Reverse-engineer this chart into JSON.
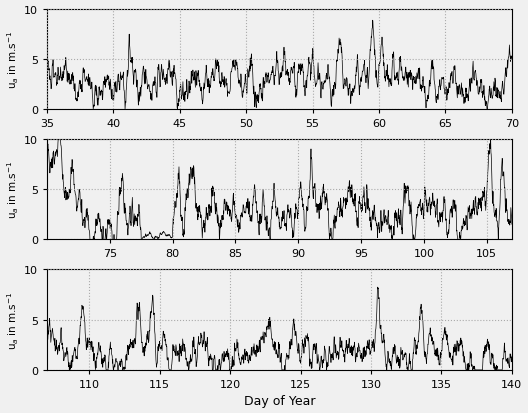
{
  "panels": [
    {
      "xmin": 35,
      "xmax": 70,
      "xticks": [
        35,
        40,
        45,
        50,
        55,
        60,
        65,
        70
      ]
    },
    {
      "xmin": 70,
      "xmax": 107,
      "xticks": [
        75,
        80,
        85,
        90,
        95,
        100,
        105
      ]
    },
    {
      "xmin": 107,
      "xmax": 140,
      "xticks": [
        110,
        115,
        120,
        125,
        130,
        135,
        140
      ]
    }
  ],
  "yticks": [
    0,
    5,
    10
  ],
  "ylim": [
    0,
    10
  ],
  "ylabel": "u$_a$ in m.s$^{-1}$",
  "xlabel": "Day of Year",
  "linecolor": "black",
  "linewidth": 0.5,
  "grid_color": "#aaaaaa",
  "grid_style": ":",
  "bg_color": "#f0f0f0",
  "n_per_day": 48,
  "ar_coef": 0.92,
  "noise_std": 0.4,
  "base_wind": 2.0
}
